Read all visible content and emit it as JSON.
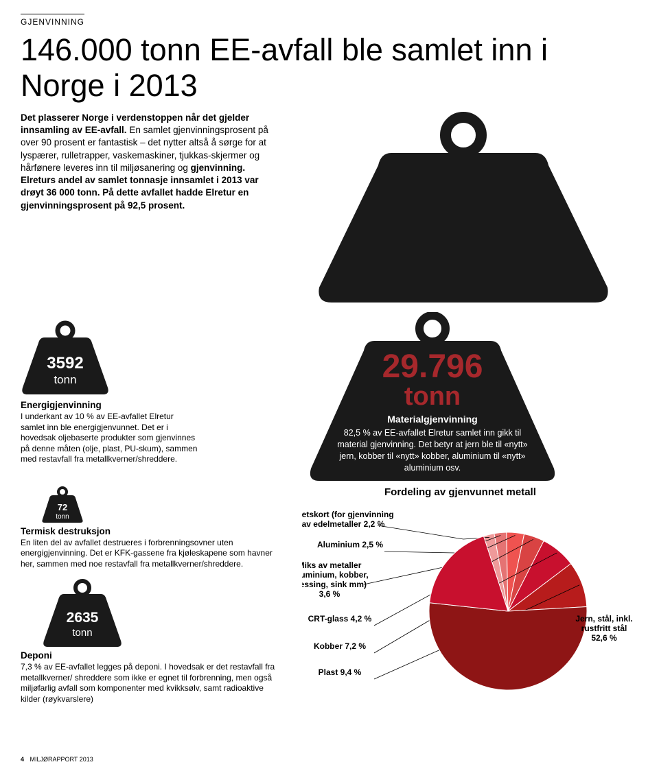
{
  "colors": {
    "weight_dark": "#1a1a1a",
    "accent_red": "#a6282c",
    "pie_red": "#c8102e",
    "pie_shades": [
      "#ef9a9a",
      "#e57373",
      "#ef5350",
      "#d94343",
      "#c8102e",
      "#b71c1c",
      "#8e1515"
    ]
  },
  "section": "GJENVINNING",
  "headline": "146.000 tonn  EE-avfall ble samlet inn i Norge i 2013",
  "intro": {
    "lead_bold": "Det plasserer Norge i verdenstoppen når det gjelder innsamling av EE-avfall. ",
    "lead_rest": "En samlet gjenvinningsprosent på over 90 prosent er fantastisk – det nytter altså å sørge for at lyspærer, rulletrapper, vaskemaskiner, tjukkas-skjermer og hårfønere leveres inn til miljøsanering og ",
    "bold2": "gjenvinning. Elreturs andel av samlet tonnasje innsamlet i 2013 var drøyt 36 000 tonn. På dette avfallet hadde Elretur en gjenvinningsprosent på 92,5 prosent."
  },
  "weight_3592": {
    "value": "3592",
    "unit": "tonn",
    "title": "Energigjenvinning",
    "body": "I underkant av 10 % av EE-avfallet Elretur samlet inn ble energigjenvunnet. Det er i hovedsak oljebaserte produkter som gjenvinnes på denne måten (olje, plast, PU-skum), sammen med restavfall fra metallkverner/shreddere."
  },
  "weight_29796": {
    "value": "29.796",
    "unit": "tonn",
    "title": "Materialgjenvinning",
    "body": "82,5 % av EE-avfallet Elretur samlet inn gikk til material gjenvinning. Det betyr at jern ble til «nytt» jern, kobber til «nytt» kobber, aluminium til «nytt» aluminium osv."
  },
  "weight_72": {
    "value": "72",
    "unit": "tonn",
    "title": "Termisk destruksjon",
    "body": "En liten del av avfallet destrueres i forbrenningsovner uten energigjenvinning. Det er KFK-gassene fra kjøleskapene som havner her, sammen med noe restavfall fra metallkverner/shreddere."
  },
  "weight_2635": {
    "value": "2635",
    "unit": "tonn",
    "title": "Deponi",
    "body": "7,3 % av EE-avfallet legges på deponi. I hovedsak er det restavfall fra metallkverner/ shreddere som ikke er egnet til forbrenning, men også miljøfarlig avfall som komponenter med kvikksølv, samt radioaktive kilder (røykvarslere)"
  },
  "pie": {
    "title": "Fordeling av gjenvunnet metall",
    "slices": [
      {
        "label_lines": [
          "Kretskort (for gjenvinning",
          "av edelmetaller 2,2 %"
        ],
        "value": 2.2
      },
      {
        "label_lines": [
          "Aluminium 2,5 %"
        ],
        "value": 2.5
      },
      {
        "label_lines": [
          "Miks av metaller",
          "(aluminium, kobber,",
          "messing, sink mm)",
          "3,6 %"
        ],
        "value": 3.6
      },
      {
        "label_lines": [
          "CRT-glass 4,2 %"
        ],
        "value": 4.2
      },
      {
        "label_lines": [
          "Kobber 7,2 %"
        ],
        "value": 7.2
      },
      {
        "label_lines": [
          "Plast 9,4 %"
        ],
        "value": 9.4
      },
      {
        "label_lines": [
          "Jern, stål, inkl.",
          "rustfritt stål",
          "52,6 %"
        ],
        "value": 52.6
      }
    ]
  },
  "footer": {
    "page": "4",
    "doc": "MILJØRAPPORT 2013"
  }
}
